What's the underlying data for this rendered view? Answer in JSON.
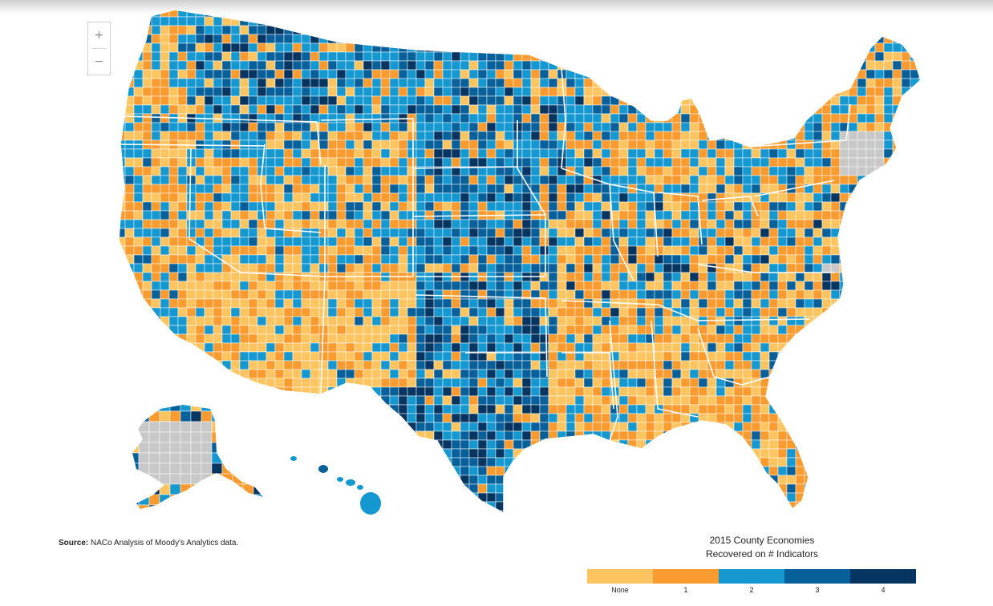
{
  "zoom": {
    "in_label": "+",
    "out_label": "−"
  },
  "source": {
    "label": "Source:",
    "text": "NACo Analysis of Moody's Analytics data."
  },
  "legend": {
    "title": "2015 County Economies",
    "subtitle": "Recovered on # Indicators",
    "items": [
      {
        "label": "None",
        "color": "#fdc45f"
      },
      {
        "label": "1",
        "color": "#f99b2e"
      },
      {
        "label": "2",
        "color": "#1598d0"
      },
      {
        "label": "3",
        "color": "#08609a"
      },
      {
        "label": "4",
        "color": "#063561"
      }
    ]
  },
  "map": {
    "no_data_color": "#c8c8c8",
    "border_color": "#ffffff"
  }
}
